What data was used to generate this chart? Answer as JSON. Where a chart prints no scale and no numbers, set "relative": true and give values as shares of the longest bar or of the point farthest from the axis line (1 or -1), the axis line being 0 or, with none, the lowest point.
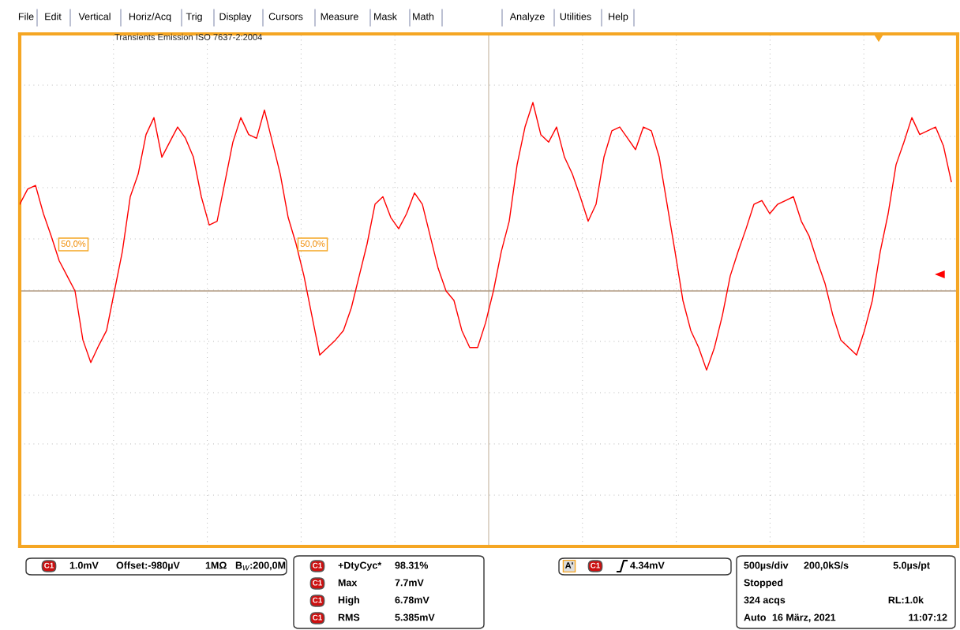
{
  "chart_data": {
    "type": "line",
    "title": "Transients Emission ISO 7637-2:2004",
    "relative": true,
    "grid": true,
    "ref_lines": [
      {
        "axis": "y",
        "value": 0,
        "color": "#b09a80"
      }
    ],
    "categories": [
      null,
      null,
      null,
      null,
      null,
      null,
      null,
      null,
      null,
      null,
      null,
      null,
      null,
      null,
      null,
      null,
      null,
      null,
      null,
      null,
      null,
      null,
      null,
      null,
      null,
      null,
      null,
      null,
      null,
      null,
      null,
      null,
      null,
      null,
      null,
      null,
      null,
      null,
      null,
      null,
      null,
      null,
      null,
      null,
      null,
      null,
      null,
      null,
      null,
      null,
      null,
      null,
      null,
      null,
      null,
      null,
      null,
      null,
      null,
      null,
      null,
      null,
      null,
      null,
      null,
      null,
      null,
      null,
      null,
      null,
      null,
      null,
      null,
      null,
      null,
      null,
      null,
      null,
      null,
      null,
      null,
      null,
      null,
      null,
      null,
      null,
      null,
      null,
      null,
      null,
      null,
      null,
      null,
      null,
      null,
      null,
      null,
      null,
      null,
      null,
      null,
      null,
      null,
      null,
      null,
      null,
      null,
      null,
      null,
      null,
      null,
      null,
      null,
      null,
      null,
      null,
      null,
      null,
      null
    ],
    "series": [
      {
        "color": "#ff0000",
        "values": [
          0.46,
          0.54,
          0.56,
          0.41,
          0.29,
          0.16,
          0.08,
          0,
          -0.26,
          -0.38,
          -0.29,
          -0.21,
          0,
          0.21,
          0.5,
          0.62,
          0.83,
          0.92,
          0.71,
          0.79,
          0.87,
          0.81,
          0.71,
          0.5,
          0.35,
          0.37,
          0.58,
          0.79,
          0.92,
          0.83,
          0.81,
          0.96,
          0.79,
          0.62,
          0.39,
          0.25,
          0.08,
          -0.13,
          -0.34,
          -0.3,
          -0.26,
          -0.21,
          -0.09,
          0.08,
          0.25,
          0.46,
          0.5,
          0.39,
          0.33,
          0.41,
          0.52,
          0.46,
          0.29,
          0.12,
          0,
          -0.05,
          -0.21,
          -0.3,
          -0.3,
          -0.17,
          0,
          0.21,
          0.37,
          0.67,
          0.87,
          1,
          0.83,
          0.79,
          0.87,
          0.71,
          0.62,
          0.5,
          0.37,
          0.46,
          0.71,
          0.85,
          0.87,
          0.81,
          0.75,
          0.87,
          0.85,
          0.71,
          0.46,
          0.21,
          -0.05,
          -0.21,
          -0.3,
          -0.42,
          -0.3,
          -0.13,
          0.08,
          0.21,
          0.33,
          0.46,
          0.48,
          0.41,
          0.46,
          0.48,
          0.5,
          0.37,
          0.29,
          0.16,
          0.04,
          -0.13,
          -0.26,
          -0.3,
          -0.34,
          -0.21,
          -0.05,
          0.21,
          0.41,
          0.67,
          0.79,
          0.92,
          0.83,
          0.85,
          0.87,
          0.77,
          0.58
        ]
      }
    ],
    "annotations": [
      "File",
      "Edit",
      "Vertical",
      "Horiz/Acq",
      "Trig",
      "Display",
      "Cursors",
      "Measure",
      "Mask",
      "Math",
      "Analyze",
      "Utilities",
      "Help",
      "50,0%",
      "50,0%",
      "C1",
      "1.0mV",
      "Offset:-980µV",
      "1MΩ",
      "B$_{W}$:200,0M",
      "C1",
      "+DtyCyc*",
      "98.31%",
      "C1",
      "Max",
      "7.7mV",
      "C1",
      "High",
      "6.78mV",
      "C1",
      "RMS",
      "5.385mV",
      "A'",
      "C1",
      "4.34mV",
      "500µs/div",
      "200,0kS/s",
      "5.0µs/pt",
      "Stopped",
      "324 acqs",
      "RL:1.0k",
      "Auto",
      "16 März, 2021",
      "11:07:12"
    ]
  }
}
